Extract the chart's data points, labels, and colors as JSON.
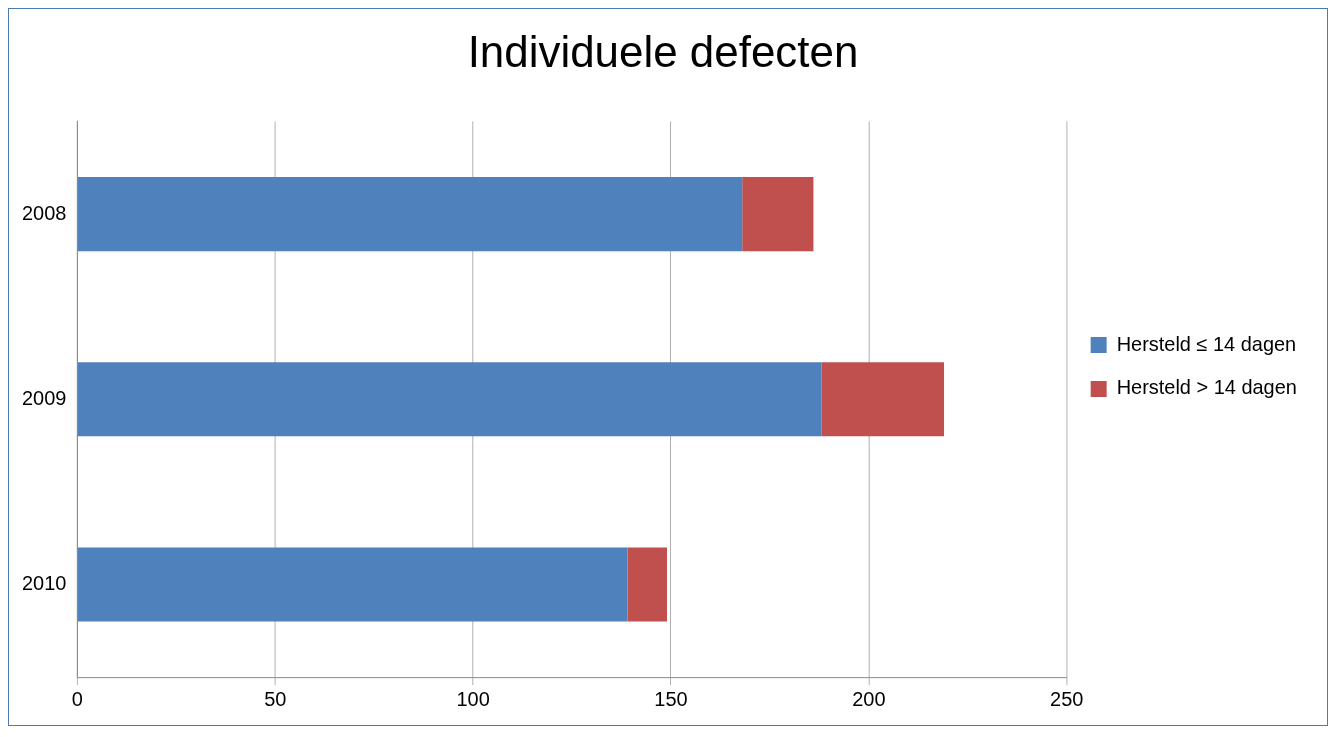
{
  "chart_data": {
    "type": "bar",
    "title": "Individuele defecten",
    "orientation": "horizontal",
    "stacked": true,
    "categories": [
      "2008",
      "2009",
      "2010"
    ],
    "series": [
      {
        "name": "Hersteld ≤ 14 dagen",
        "color": "#4f81bd",
        "values": [
          168,
          188,
          139
        ]
      },
      {
        "name": "Hersteld > 14 dagen",
        "color": "#c0504d",
        "values": [
          18,
          31,
          10
        ]
      }
    ],
    "xlim": [
      0,
      250
    ],
    "xticks": [
      0,
      50,
      100,
      150,
      200,
      250
    ],
    "grid": "x",
    "legend": "right"
  }
}
